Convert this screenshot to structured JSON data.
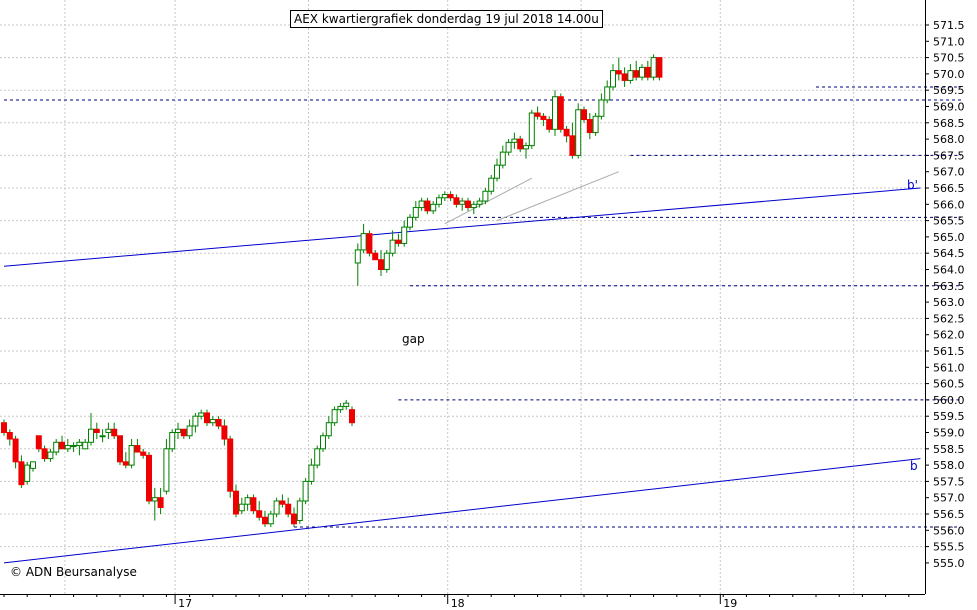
{
  "chart_data": {
    "type": "candlestick",
    "title": "AEX kwartiergrafiek donderdag 19 jul 2018 14.00u",
    "copyright": "© ADN Beursanalyse",
    "annotations": {
      "gap": "gap",
      "line_b": "b",
      "line_b_prime": "b'"
    },
    "ylim": [
      554.7,
      572.2
    ],
    "ytick_values": [
      555.0,
      555.5,
      556.0,
      556.5,
      557.0,
      557.5,
      558.0,
      558.5,
      559.0,
      559.5,
      560.0,
      560.5,
      561.0,
      561.5,
      562.0,
      562.5,
      563.0,
      563.5,
      564.0,
      564.5,
      565.0,
      565.5,
      566.0,
      566.5,
      567.0,
      567.5,
      568.0,
      568.5,
      569.0,
      569.5,
      570.0,
      570.5,
      571.0,
      571.5
    ],
    "ytick_labels": [
      "555.0",
      "555.5",
      "556.0",
      "556.5",
      "557.0",
      "557.5",
      "558.0",
      "558.5",
      "559.0",
      "559.5",
      "560.0",
      "560.5",
      "561.0",
      "561.5",
      "562.0",
      "562.5",
      "563.0",
      "563.5",
      "564.0",
      "564.5",
      "565.0",
      "565.5",
      "566.0",
      "566.5",
      "567.0",
      "567.5",
      "568.0",
      "568.5",
      "569.0",
      "569.5",
      "570.0",
      "570.5",
      "571.0",
      "571.5"
    ],
    "day_labels": [
      {
        "label": "17",
        "index": 29.5
      },
      {
        "label": "18",
        "index": 76.5
      },
      {
        "label": "19",
        "index": 123.5
      }
    ],
    "horizontal_levels": [
      {
        "y": 569.2,
        "from": 0,
        "to": 165
      },
      {
        "y": 569.6,
        "from": 140,
        "to": 165
      },
      {
        "y": 567.5,
        "from": 108,
        "to": 165
      },
      {
        "y": 565.6,
        "from": 80,
        "to": 165
      },
      {
        "y": 563.5,
        "from": 70,
        "to": 165
      },
      {
        "y": 560.0,
        "from": 68,
        "to": 165
      },
      {
        "y": 556.1,
        "from": 50,
        "to": 165
      }
    ],
    "trendlines": [
      {
        "name": "b'",
        "x": [
          0,
          158
        ],
        "y": [
          564.1,
          566.5
        ]
      },
      {
        "name": "b",
        "x": [
          0,
          158
        ],
        "y": [
          555.0,
          558.2
        ]
      }
    ],
    "channel_lines": [
      {
        "x": [
          76,
          91
        ],
        "y": [
          565.4,
          566.8
        ]
      },
      {
        "x": [
          85,
          106
        ],
        "y": [
          565.5,
          567.0
        ]
      }
    ],
    "candles": [
      [
        559.3,
        559.4,
        558.9,
        559.0
      ],
      [
        559.0,
        559.1,
        558.6,
        558.8
      ],
      [
        558.8,
        558.9,
        557.9,
        558.1
      ],
      [
        558.1,
        558.3,
        557.3,
        557.4
      ],
      [
        557.5,
        558.1,
        557.4,
        558.0
      ],
      [
        557.9,
        558.1,
        557.8,
        558.1
      ],
      [
        558.9,
        558.9,
        558.4,
        558.5
      ],
      [
        558.5,
        558.6,
        558.1,
        558.2
      ],
      [
        558.2,
        558.5,
        558.1,
        558.4
      ],
      [
        558.4,
        558.8,
        558.3,
        558.7
      ],
      [
        558.7,
        558.9,
        558.5,
        558.5
      ],
      [
        558.5,
        558.8,
        558.4,
        558.6
      ],
      [
        558.6,
        558.7,
        558.4,
        558.6
      ],
      [
        558.6,
        558.8,
        558.3,
        558.7
      ],
      [
        558.5,
        558.8,
        558.5,
        558.7
      ],
      [
        558.7,
        559.6,
        558.6,
        559.1
      ],
      [
        559.1,
        559.3,
        558.8,
        559.0
      ],
      [
        558.9,
        559.1,
        558.7,
        558.9
      ],
      [
        559.0,
        559.3,
        558.8,
        559.1
      ],
      [
        559.1,
        559.3,
        558.8,
        558.9
      ],
      [
        558.9,
        558.9,
        558.0,
        558.1
      ],
      [
        558.1,
        558.4,
        557.9,
        558.0
      ],
      [
        558.0,
        558.8,
        557.9,
        558.6
      ],
      [
        558.6,
        558.8,
        558.4,
        558.4
      ],
      [
        558.4,
        558.5,
        558.2,
        558.3
      ],
      [
        558.3,
        558.4,
        556.8,
        556.9
      ],
      [
        556.9,
        557.3,
        556.3,
        557.0
      ],
      [
        557.0,
        557.3,
        556.5,
        556.7
      ],
      [
        557.2,
        558.8,
        557.1,
        558.5
      ],
      [
        558.5,
        559.1,
        558.4,
        559.0
      ],
      [
        559.0,
        559.3,
        558.8,
        559.1
      ],
      [
        559.1,
        559.1,
        558.8,
        558.9
      ],
      [
        558.9,
        559.4,
        558.8,
        559.2
      ],
      [
        559.2,
        559.6,
        559.0,
        559.5
      ],
      [
        559.5,
        559.7,
        559.4,
        559.6
      ],
      [
        559.6,
        559.7,
        559.2,
        559.3
      ],
      [
        559.3,
        559.5,
        559.2,
        559.4
      ],
      [
        559.4,
        559.5,
        559.1,
        559.2
      ],
      [
        559.2,
        559.4,
        558.6,
        558.8
      ],
      [
        558.8,
        558.9,
        557.0,
        557.2
      ],
      [
        557.2,
        557.4,
        556.4,
        556.5
      ],
      [
        556.6,
        557.0,
        556.5,
        556.8
      ],
      [
        556.8,
        557.1,
        556.6,
        557.0
      ],
      [
        557.0,
        557.1,
        556.5,
        556.6
      ],
      [
        556.6,
        556.9,
        556.3,
        556.4
      ],
      [
        556.4,
        556.6,
        556.1,
        556.2
      ],
      [
        556.2,
        556.6,
        556.1,
        556.5
      ],
      [
        556.5,
        557.0,
        556.4,
        556.9
      ],
      [
        556.9,
        557.1,
        556.7,
        556.8
      ],
      [
        556.8,
        557.0,
        556.4,
        556.5
      ],
      [
        556.5,
        556.7,
        556.1,
        556.2
      ],
      [
        556.3,
        557.0,
        556.2,
        556.9
      ],
      [
        556.9,
        557.6,
        556.8,
        557.5
      ],
      [
        557.5,
        558.2,
        557.4,
        558.0
      ],
      [
        558.0,
        558.6,
        557.9,
        558.5
      ],
      [
        558.5,
        559.0,
        558.4,
        558.9
      ],
      [
        558.9,
        559.5,
        558.8,
        559.3
      ],
      [
        559.3,
        559.8,
        559.2,
        559.7
      ],
      [
        559.7,
        559.9,
        559.6,
        559.8
      ],
      [
        559.8,
        560.0,
        559.7,
        559.9
      ],
      [
        559.7,
        559.8,
        559.2,
        559.3
      ],
      [
        564.2,
        564.8,
        563.5,
        564.6
      ],
      [
        564.6,
        565.4,
        564.5,
        565.1
      ],
      [
        565.1,
        565.2,
        564.4,
        564.5
      ],
      [
        564.5,
        564.6,
        564.3,
        564.3
      ],
      [
        564.3,
        564.6,
        563.8,
        564.0
      ],
      [
        564.0,
        564.6,
        563.9,
        564.5
      ],
      [
        564.5,
        565.2,
        564.4,
        564.9
      ],
      [
        564.9,
        565.1,
        564.7,
        564.8
      ],
      [
        564.8,
        565.5,
        564.7,
        565.3
      ],
      [
        565.3,
        565.7,
        565.2,
        565.6
      ],
      [
        565.6,
        566.1,
        565.5,
        565.9
      ],
      [
        565.9,
        566.2,
        565.8,
        566.1
      ],
      [
        566.1,
        566.2,
        565.7,
        565.8
      ],
      [
        565.8,
        566.1,
        565.7,
        566.0
      ],
      [
        566.0,
        566.3,
        565.9,
        566.2
      ],
      [
        566.2,
        566.4,
        566.1,
        566.3
      ],
      [
        566.3,
        566.4,
        566.1,
        566.2
      ],
      [
        566.2,
        566.3,
        565.9,
        566.0
      ],
      [
        566.0,
        566.2,
        565.8,
        566.1
      ],
      [
        566.1,
        566.2,
        565.8,
        565.9
      ],
      [
        565.9,
        566.1,
        565.7,
        566.0
      ],
      [
        566.0,
        566.2,
        565.9,
        566.1
      ],
      [
        566.1,
        566.5,
        566.0,
        566.4
      ],
      [
        566.4,
        566.9,
        566.3,
        566.8
      ],
      [
        566.8,
        567.4,
        566.7,
        567.2
      ],
      [
        567.2,
        567.8,
        567.1,
        567.6
      ],
      [
        567.6,
        568.0,
        567.5,
        567.9
      ],
      [
        567.9,
        568.2,
        567.7,
        568.0
      ],
      [
        568.0,
        568.1,
        567.6,
        567.7
      ],
      [
        567.7,
        567.9,
        567.4,
        567.8
      ],
      [
        567.8,
        568.9,
        567.7,
        568.8
      ],
      [
        568.8,
        569.0,
        568.6,
        568.7
      ],
      [
        568.7,
        568.8,
        568.4,
        568.6
      ],
      [
        568.6,
        568.7,
        568.2,
        568.3
      ],
      [
        568.3,
        569.5,
        568.1,
        569.3
      ],
      [
        569.3,
        569.4,
        568.2,
        568.3
      ],
      [
        568.3,
        568.4,
        567.9,
        568.1
      ],
      [
        568.1,
        568.5,
        567.4,
        567.5
      ],
      [
        567.5,
        569.1,
        567.4,
        568.9
      ],
      [
        568.9,
        569.0,
        568.5,
        568.6
      ],
      [
        568.6,
        568.8,
        568.0,
        568.2
      ],
      [
        568.2,
        568.8,
        568.1,
        568.7
      ],
      [
        568.7,
        569.4,
        568.6,
        569.2
      ],
      [
        569.2,
        569.8,
        569.1,
        569.6
      ],
      [
        569.6,
        570.3,
        569.5,
        570.1
      ],
      [
        570.1,
        570.5,
        569.8,
        570.0
      ],
      [
        570.0,
        570.2,
        569.6,
        569.8
      ],
      [
        569.8,
        570.3,
        569.7,
        570.1
      ],
      [
        570.1,
        570.4,
        569.8,
        569.9
      ],
      [
        569.9,
        570.3,
        569.8,
        570.2
      ],
      [
        570.2,
        570.4,
        569.8,
        569.9
      ],
      [
        569.9,
        570.6,
        569.8,
        570.5
      ],
      [
        570.5,
        570.5,
        569.8,
        569.9
      ]
    ]
  }
}
